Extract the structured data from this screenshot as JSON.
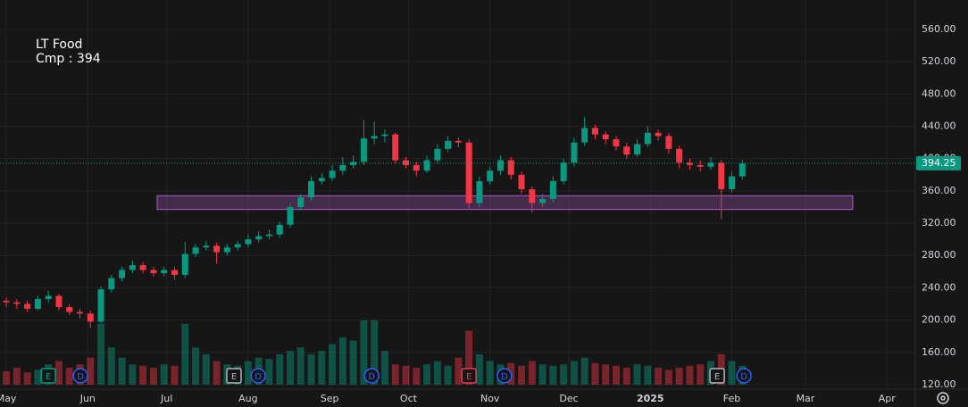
{
  "chart_data": {
    "type": "candlestick",
    "title": "LT Food",
    "subtitle": "Cmp : 394",
    "up_color": "#089981",
    "down_color": "#f23645",
    "grid": true,
    "xlim": [
      -2.4,
      345.8
    ],
    "ylim": [
      114.4,
      596.5
    ],
    "xticks": [
      {
        "value": 0,
        "label": "May"
      },
      {
        "value": 31,
        "label": "Jun"
      },
      {
        "value": 61,
        "label": "Jul"
      },
      {
        "value": 92,
        "label": "Aug"
      },
      {
        "value": 123,
        "label": "Sep"
      },
      {
        "value": 153,
        "label": "Oct"
      },
      {
        "value": 184,
        "label": "Nov"
      },
      {
        "value": 214,
        "label": "Dec"
      },
      {
        "value": 245,
        "label": "2025"
      },
      {
        "value": 276,
        "label": "Feb"
      },
      {
        "value": 304,
        "label": "Mar"
      },
      {
        "value": 335,
        "label": "Apr"
      }
    ],
    "yticks": [
      {
        "value": 120,
        "label": "120.00"
      },
      {
        "value": 160,
        "label": "160.00"
      },
      {
        "value": 200,
        "label": "200.00"
      },
      {
        "value": 240,
        "label": "240.00"
      },
      {
        "value": 280,
        "label": "280.00"
      },
      {
        "value": 320,
        "label": "320.00"
      },
      {
        "value": 360,
        "label": "360.00"
      },
      {
        "value": 400,
        "label": "400.00"
      },
      {
        "value": 440,
        "label": "440.00"
      },
      {
        "value": 480,
        "label": "480.00"
      },
      {
        "value": 520,
        "label": "520.00"
      },
      {
        "value": 560,
        "label": "560.00"
      }
    ],
    "last_price": 394.25,
    "zone": {
      "x": [
        57.4,
        322
      ],
      "y": [
        337,
        354
      ],
      "color": "#b05cc8"
    },
    "x": [
      0,
      4,
      8,
      12,
      16,
      20,
      24,
      28,
      32,
      36,
      40,
      44,
      48,
      52,
      56,
      60,
      64,
      68,
      72,
      76,
      80,
      84,
      88,
      92,
      96,
      100,
      104,
      108,
      112,
      116,
      120,
      124,
      128,
      132,
      136,
      140,
      144,
      148,
      152,
      156,
      160,
      164,
      168,
      172,
      176,
      180,
      184,
      188,
      192,
      196,
      200,
      204,
      208,
      212,
      216,
      220,
      224,
      228,
      232,
      236,
      240,
      244,
      248,
      252,
      256,
      260,
      264,
      268,
      272,
      276,
      280
    ],
    "open": [
      224,
      222,
      220,
      214,
      226,
      230,
      216,
      210,
      208,
      198,
      238,
      252,
      262,
      268,
      262,
      258,
      262,
      256,
      282,
      290,
      292,
      284,
      290,
      294,
      300,
      304,
      306,
      318,
      340,
      352,
      372,
      376,
      385,
      392,
      396,
      425,
      428,
      430,
      398,
      392,
      385,
      398,
      412,
      422,
      420,
      345,
      372,
      385,
      398,
      380,
      362,
      345,
      350,
      372,
      395,
      420,
      438,
      430,
      424,
      415,
      405,
      418,
      432,
      428,
      412,
      395,
      392,
      390,
      395,
      362,
      378
    ],
    "high": [
      228,
      226,
      224,
      230,
      236,
      232,
      220,
      214,
      212,
      242,
      256,
      266,
      274,
      272,
      266,
      266,
      266,
      297,
      294,
      298,
      296,
      294,
      298,
      306,
      310,
      312,
      322,
      344,
      356,
      378,
      382,
      392,
      402,
      404,
      448,
      446,
      436,
      432,
      402,
      396,
      404,
      418,
      428,
      426,
      424,
      378,
      390,
      404,
      402,
      384,
      366,
      356,
      378,
      400,
      426,
      452,
      442,
      434,
      428,
      420,
      424,
      440,
      436,
      432,
      416,
      400,
      398,
      402,
      398,
      384,
      398
    ],
    "low": [
      216,
      214,
      210,
      212,
      222,
      212,
      206,
      202,
      190,
      196,
      234,
      248,
      258,
      258,
      254,
      254,
      250,
      252,
      278,
      286,
      270,
      280,
      286,
      290,
      296,
      300,
      302,
      314,
      336,
      348,
      368,
      372,
      380,
      388,
      392,
      418,
      420,
      394,
      388,
      378,
      382,
      394,
      408,
      414,
      338,
      340,
      368,
      380,
      374,
      356,
      333,
      340,
      346,
      368,
      390,
      416,
      424,
      418,
      410,
      400,
      402,
      414,
      422,
      406,
      388,
      386,
      384,
      386,
      325,
      358,
      374
    ],
    "close": [
      222,
      220,
      214,
      226,
      230,
      216,
      210,
      208,
      198,
      238,
      252,
      262,
      268,
      262,
      258,
      262,
      256,
      282,
      290,
      292,
      284,
      290,
      294,
      300,
      304,
      306,
      318,
      340,
      352,
      372,
      376,
      385,
      392,
      396,
      425,
      428,
      430,
      398,
      392,
      385,
      398,
      412,
      422,
      420,
      345,
      372,
      385,
      398,
      380,
      362,
      345,
      350,
      372,
      395,
      420,
      438,
      430,
      424,
      415,
      405,
      418,
      432,
      428,
      412,
      395,
      392,
      390,
      395,
      362,
      378,
      394
    ],
    "volume": [
      20,
      25,
      18,
      22,
      30,
      35,
      25,
      30,
      40,
      90,
      55,
      40,
      30,
      28,
      25,
      30,
      28,
      90,
      55,
      45,
      35,
      30,
      28,
      35,
      40,
      38,
      45,
      50,
      55,
      45,
      50,
      60,
      70,
      65,
      95,
      95,
      50,
      30,
      28,
      25,
      30,
      35,
      28,
      40,
      80,
      45,
      35,
      30,
      32,
      28,
      35,
      30,
      28,
      30,
      35,
      40,
      32,
      30,
      28,
      25,
      30,
      28,
      25,
      22,
      25,
      28,
      30,
      35,
      45,
      35,
      28
    ],
    "events": [
      {
        "label": "E",
        "x": 16
      },
      {
        "label": "D",
        "x": 28.2
      },
      {
        "label": "E",
        "x": 86.6
      },
      {
        "label": "D",
        "x": 95.8
      },
      {
        "label": "D",
        "x": 139
      },
      {
        "label": "E",
        "x": 176
      },
      {
        "label": "D",
        "x": 189.5
      },
      {
        "label": "E",
        "x": 270.4
      },
      {
        "label": "D",
        "x": 280.6
      }
    ]
  }
}
